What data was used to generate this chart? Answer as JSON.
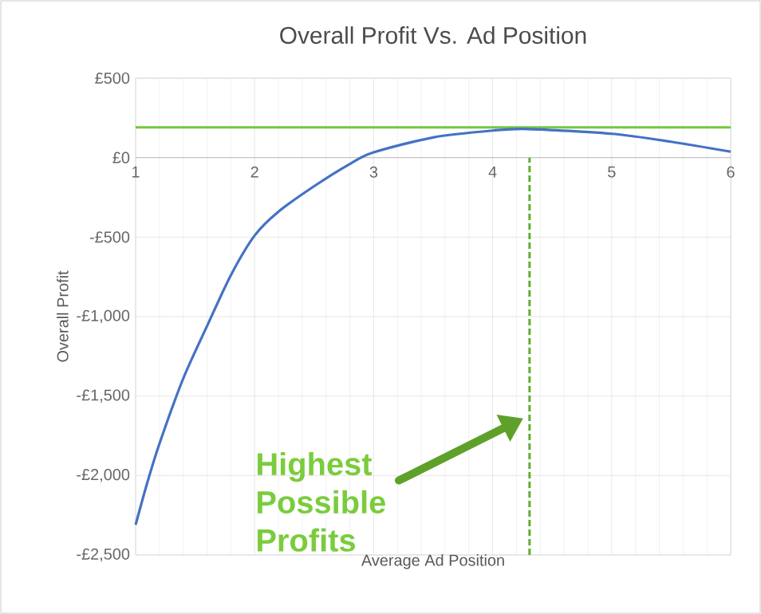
{
  "chart_data": {
    "type": "line",
    "title": "Overall Profit Vs. Ad Position",
    "xlabel": "Average Ad Position",
    "ylabel": "Overall Profit",
    "x": [
      1,
      1.1,
      1.2,
      1.4,
      1.6,
      1.8,
      2,
      2.2,
      2.5,
      2.8,
      3,
      3.5,
      4,
      4.3,
      5,
      5.5,
      6
    ],
    "series": [
      {
        "color": "#4472c4",
        "values": [
          -2310,
          -2040,
          -1800,
          -1390,
          -1060,
          -740,
          -490,
          -340,
          -180,
          -40,
          33,
          127,
          170,
          180,
          150,
          100,
          37
        ]
      }
    ],
    "xlim": [
      1,
      6
    ],
    "xticks": [
      1,
      2,
      3,
      4,
      5,
      6
    ],
    "ylim": [
      -2500,
      500
    ],
    "yticks": [
      {
        "value": 500,
        "label": "£500"
      },
      {
        "value": 0,
        "label": "£0"
      },
      {
        "value": -500,
        "label": "-£500"
      },
      {
        "value": -1000,
        "label": "-£1,000"
      },
      {
        "value": -1500,
        "label": "-£1,500"
      },
      {
        "value": -2000,
        "label": "-£2,000"
      },
      {
        "value": -2500,
        "label": "-£2,500"
      }
    ],
    "ref_lines": [
      {
        "axis": "y",
        "value": 190,
        "color": "#70c93a",
        "line_style": "solid"
      },
      {
        "axis": "x",
        "value": 4.31,
        "color": "#5fae2e",
        "line_style": "dashed"
      }
    ],
    "annotations": [
      "Highest Possible Profits"
    ],
    "grid": true,
    "marker": "none",
    "line_style": "solid"
  }
}
